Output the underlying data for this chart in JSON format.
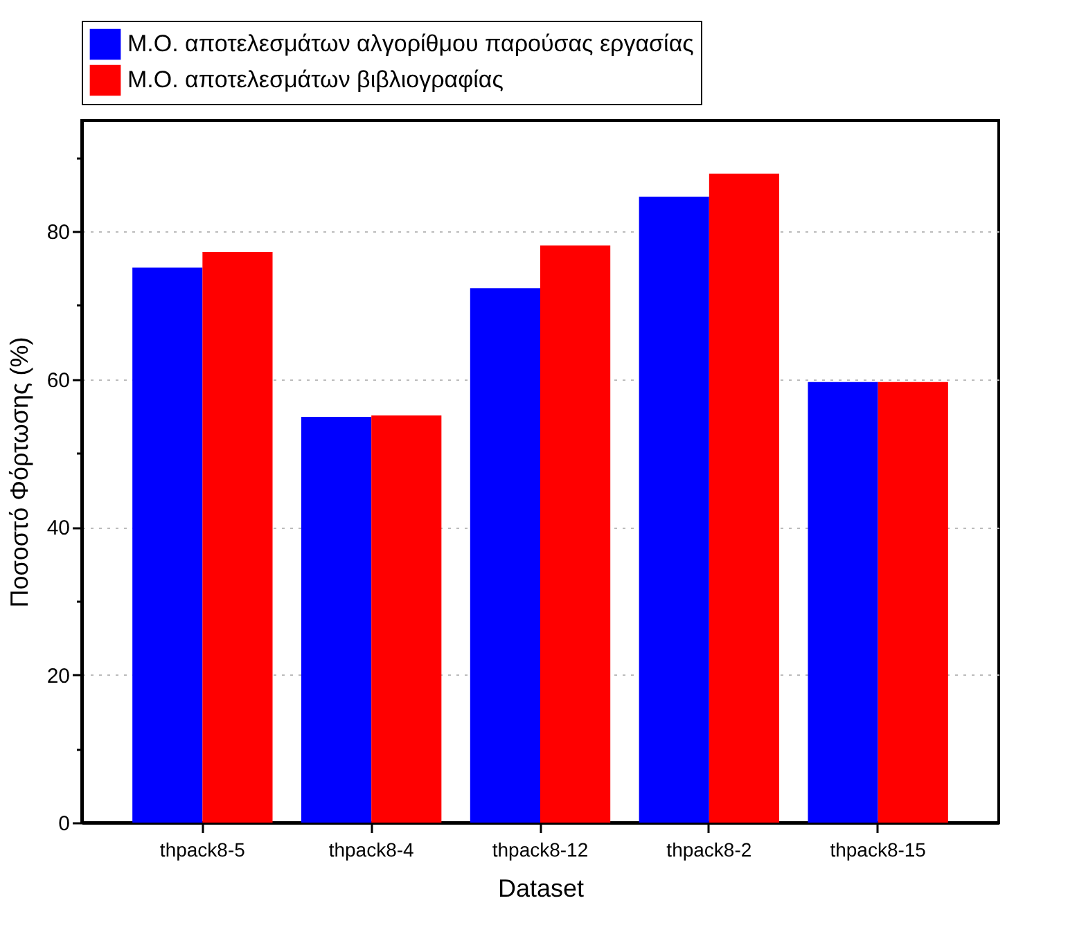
{
  "chart_data": {
    "type": "bar",
    "xlabel": "Dataset",
    "ylabel": "Ποσοστό Φόρτωσης (%)",
    "categories": [
      "thpack8-5",
      "thpack8-4",
      "thpack8-12",
      "thpack8-2",
      "thpack8-15"
    ],
    "series": [
      {
        "name": "Μ.Ο. αποτελεσμάτων αλγορίθμου παρούσας εργασίας",
        "color": "#0000ff",
        "values": [
          75.1,
          54.9,
          72.3,
          84.7,
          59.6
        ]
      },
      {
        "name": "Μ.Ο. αποτελεσμάτων βιβλιογραφίας",
        "color": "#ff0000",
        "values": [
          77.2,
          55.1,
          78.1,
          87.8,
          59.6
        ]
      }
    ],
    "ylim": [
      0,
      95
    ],
    "yticks": [
      0,
      {
        "value": 10,
        "label": null
      },
      20,
      {
        "value": 30,
        "label": null
      },
      40,
      {
        "value": 50,
        "label": null
      },
      60,
      {
        "value": 70,
        "label": null
      },
      80,
      {
        "value": 90,
        "label": null
      }
    ],
    "grid": "y",
    "legend": "top"
  }
}
